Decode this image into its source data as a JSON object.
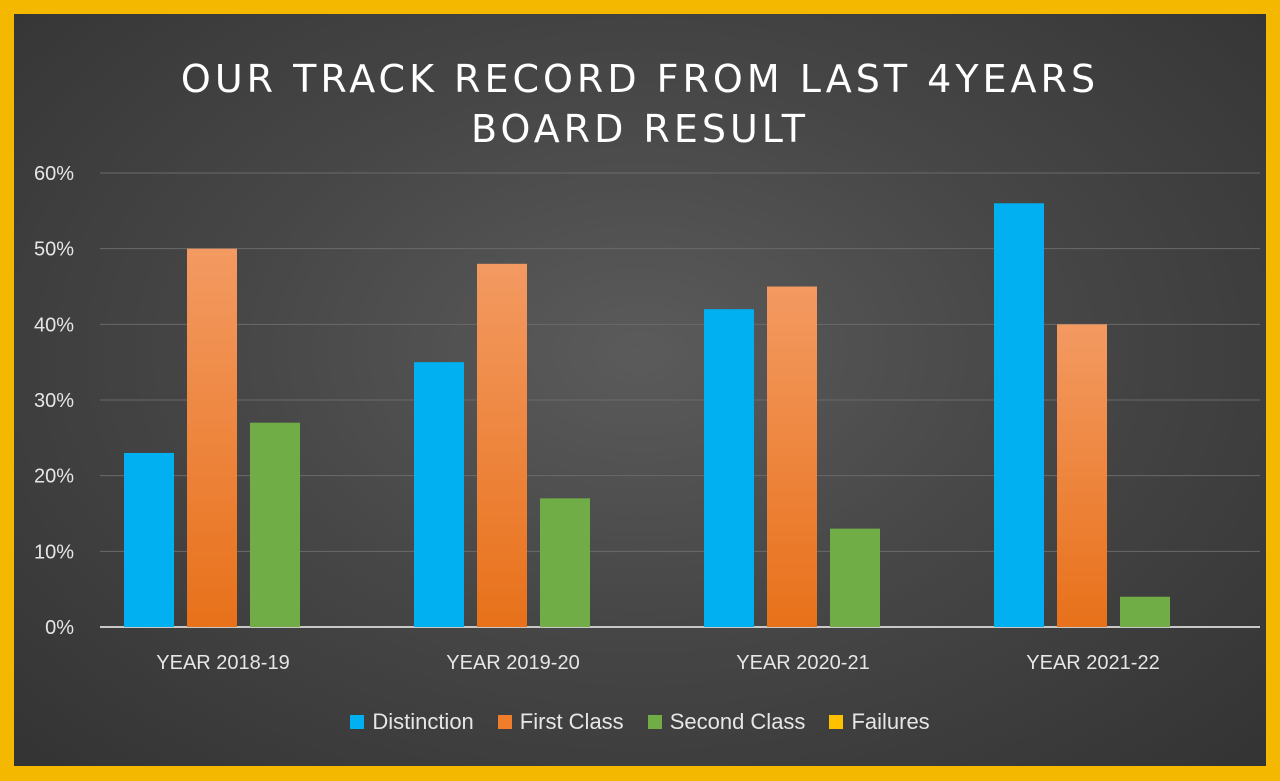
{
  "chart_data": {
    "type": "bar",
    "title": [
      "OUR TRACK RECORD FROM LAST 4YEARS",
      "BOARD RESULT"
    ],
    "categories": [
      "YEAR 2018-19",
      "YEAR 2019-20",
      "YEAR 2020-21",
      "YEAR 2021-22"
    ],
    "series": [
      {
        "name": "Distinction",
        "color": "#00b0f0",
        "values": [
          23,
          35,
          42,
          56
        ]
      },
      {
        "name": "First Class",
        "color": "#f07d2a",
        "values": [
          50,
          48,
          45,
          40
        ]
      },
      {
        "name": "Second Class",
        "color": "#70ad47",
        "values": [
          27,
          17,
          13,
          4
        ]
      },
      {
        "name": "Failures",
        "color": "#ffc000",
        "values": [
          0,
          0,
          0,
          0
        ]
      }
    ],
    "ylim": [
      0,
      60
    ],
    "yticks": [
      "0%",
      "10%",
      "20%",
      "30%",
      "40%",
      "50%",
      "60%"
    ],
    "grid": true,
    "legend_position": "bottom"
  }
}
